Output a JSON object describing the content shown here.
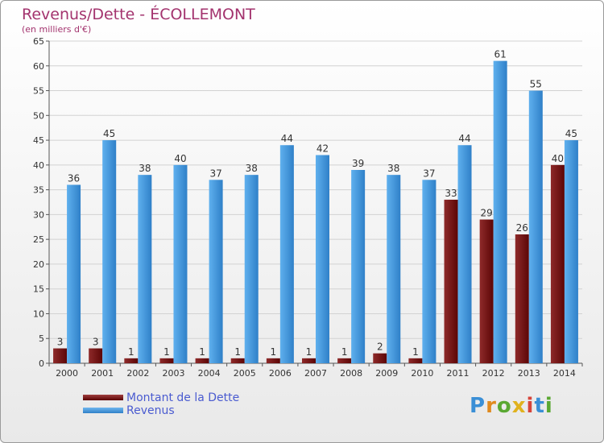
{
  "chart_data": {
    "type": "bar",
    "title": "Revenus/Dette - ÉCOLLEMONT",
    "subtitle": "(en milliers d'€)",
    "categories": [
      "2000",
      "2001",
      "2002",
      "2003",
      "2004",
      "2005",
      "2006",
      "2007",
      "2008",
      "2009",
      "2010",
      "2011",
      "2012",
      "2013",
      "2014"
    ],
    "series": [
      {
        "name": "Montant de la Dette",
        "color": "#6e0a0a",
        "values": [
          3,
          3,
          1,
          1,
          1,
          1,
          1,
          1,
          1,
          2,
          1,
          33,
          29,
          26,
          40
        ]
      },
      {
        "name": "Revenus",
        "color": "#3f94d8",
        "values": [
          36,
          45,
          38,
          40,
          37,
          38,
          44,
          42,
          39,
          38,
          37,
          44,
          61,
          55,
          45
        ]
      }
    ],
    "ylim": [
      0,
      65
    ],
    "ytick_step": 5,
    "grid": true,
    "legend_position": "bottom-left"
  },
  "logo_text": "Proxiti"
}
